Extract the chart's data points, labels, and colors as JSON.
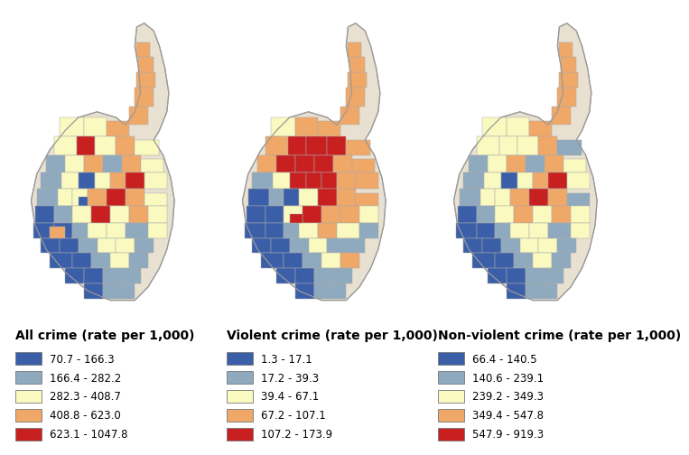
{
  "legends": [
    {
      "title": "All crime (rate per 1,000)",
      "entries": [
        {
          "color": "#3a5fa8",
          "label": "70.7 - 166.3"
        },
        {
          "color": "#8faabf",
          "label": "166.4 - 282.2"
        },
        {
          "color": "#fafac0",
          "label": "282.3 - 408.7"
        },
        {
          "color": "#f0a868",
          "label": "408.8 - 623.0"
        },
        {
          "color": "#c82020",
          "label": "623.1 - 1047.8"
        }
      ]
    },
    {
      "title": "Violent crime (rate per 1,000)",
      "entries": [
        {
          "color": "#3a5fa8",
          "label": "1.3 - 17.1"
        },
        {
          "color": "#8faabf",
          "label": "17.2 - 39.3"
        },
        {
          "color": "#fafac0",
          "label": "39.4 - 67.1"
        },
        {
          "color": "#f0a868",
          "label": "67.2 - 107.1"
        },
        {
          "color": "#c82020",
          "label": "107.2 - 173.9"
        }
      ]
    },
    {
      "title": "Non-violent crime (rate per 1,000)",
      "entries": [
        {
          "color": "#3a5fa8",
          "label": "66.4 - 140.5"
        },
        {
          "color": "#8faabf",
          "label": "140.6 - 239.1"
        },
        {
          "color": "#fafac0",
          "label": "239.2 - 349.3"
        },
        {
          "color": "#f0a868",
          "label": "349.4 - 547.8"
        },
        {
          "color": "#c82020",
          "label": "547.9 - 919.3"
        }
      ]
    }
  ],
  "c": [
    "#3a5fa8",
    "#8faabf",
    "#fafac0",
    "#f0a868",
    "#c82020"
  ],
  "neck_color": "#e8956a",
  "bg": "#ffffff",
  "ltfs": 10,
  "llfs": 8.5
}
